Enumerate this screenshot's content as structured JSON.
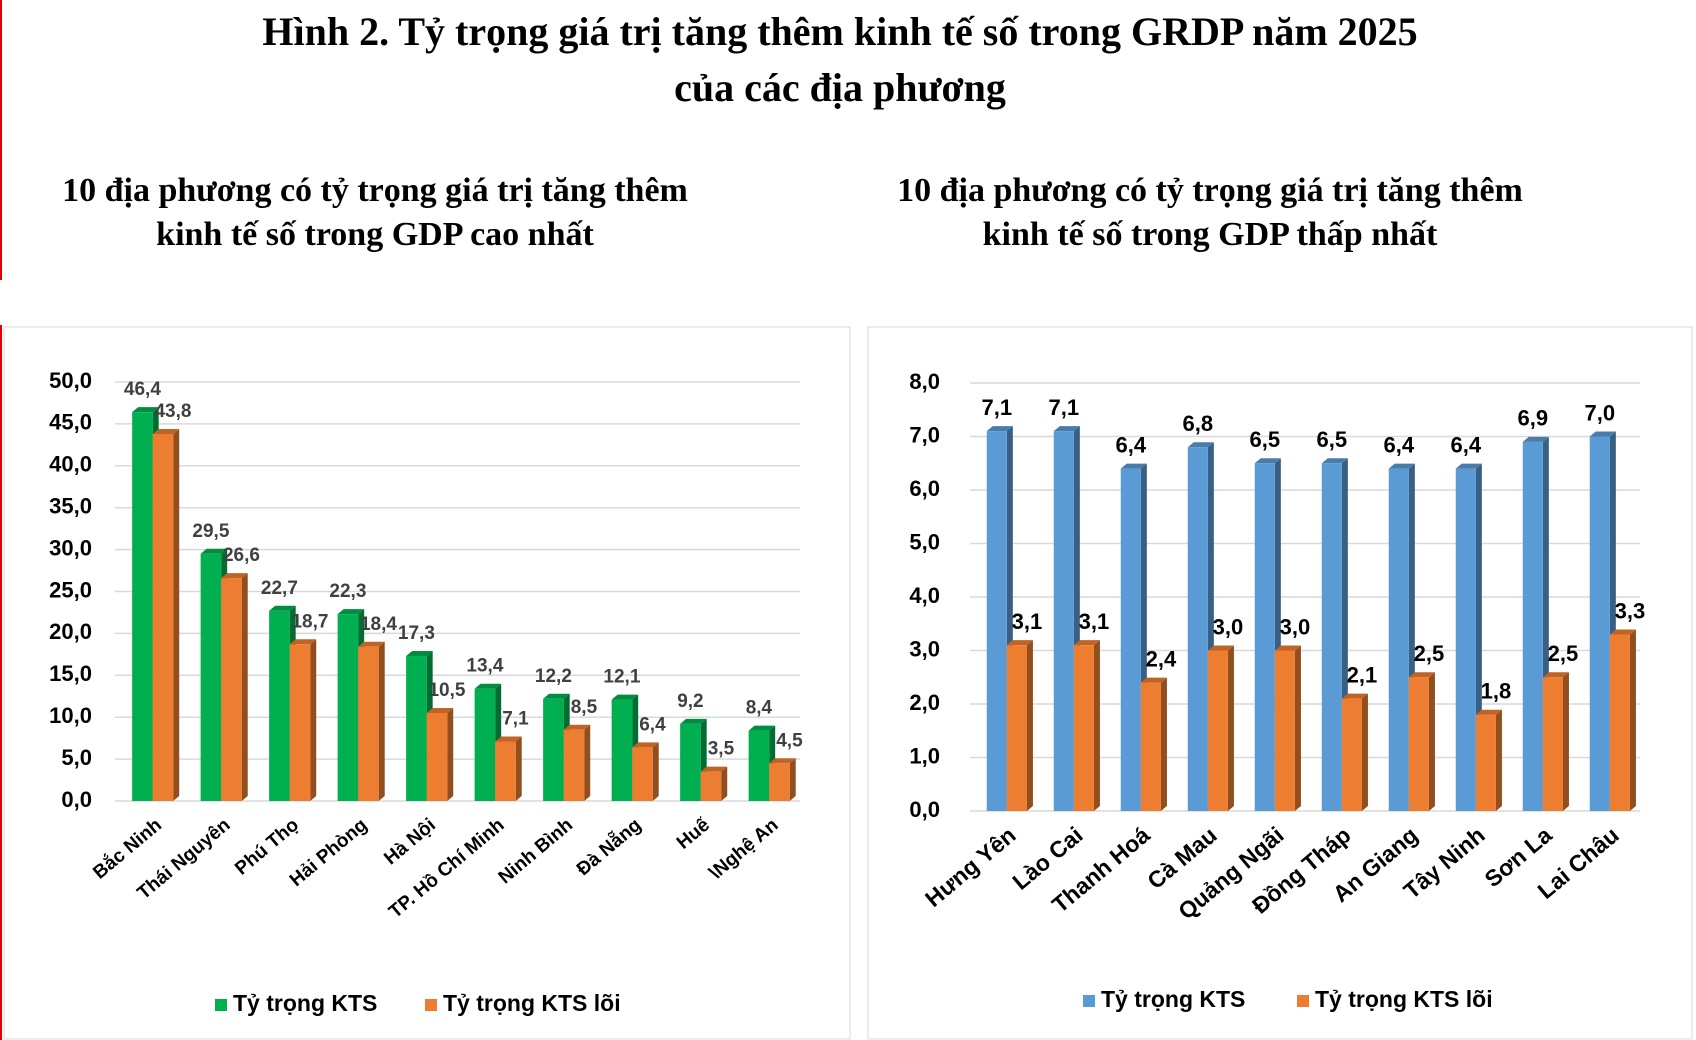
{
  "title": [
    "Hình 2. Tỷ trọng giá trị tăng thêm kinh tế số trong GRDP năm 2025",
    "của các địa phương"
  ],
  "chart_data": [
    {
      "type": "bar",
      "title": [
        "10 địa phương có tỷ trọng giá trị tăng thêm",
        "kinh tế số trong GDP cao nhất"
      ],
      "categories": [
        "Bắc Ninh",
        "Thái Nguyên",
        "Phú Thọ",
        "Hải Phòng",
        "Hà Nội",
        "TP. Hồ Chí Minh",
        "Ninh Bình",
        "Đà Nẵng",
        "Huế",
        "\\Nghệ An"
      ],
      "series": [
        {
          "name": "Tỷ trọng KTS",
          "color": "#00b050",
          "values": [
            46.4,
            29.5,
            22.7,
            22.3,
            17.3,
            13.4,
            12.2,
            12.1,
            9.2,
            8.4
          ],
          "value_labels": [
            "46,4",
            "29,5",
            "22,7",
            "22,3",
            "17,3",
            "13,4",
            "12,2",
            "12,1",
            "9,2",
            "8,4"
          ]
        },
        {
          "name": "Tỷ trọng KTS lõi",
          "color": "#ed7d31",
          "values": [
            43.8,
            26.6,
            18.7,
            18.4,
            10.5,
            7.1,
            8.5,
            6.4,
            3.5,
            4.5
          ],
          "value_labels": [
            "43,8",
            "26,6",
            "18,7",
            "18,4",
            "10,5",
            "7,1",
            "8,5",
            "6,4",
            "3,5",
            "4,5"
          ]
        }
      ],
      "ylim": [
        0,
        50
      ],
      "yticks": [
        {
          "value": 0,
          "label": "0,0"
        },
        {
          "value": 5,
          "label": "5,0"
        },
        {
          "value": 10,
          "label": "10,0"
        },
        {
          "value": 15,
          "label": "15,0"
        },
        {
          "value": 20,
          "label": "20,0"
        },
        {
          "value": 25,
          "label": "25,0"
        },
        {
          "value": 30,
          "label": "30,0"
        },
        {
          "value": 35,
          "label": "35,0"
        },
        {
          "value": 40,
          "label": "40,0"
        },
        {
          "value": 45,
          "label": "45,0"
        },
        {
          "value": 50,
          "label": "50,0"
        }
      ],
      "grid": true,
      "legend": "bottom"
    },
    {
      "type": "bar",
      "title": [
        "10 địa phương có tỷ trọng giá trị tăng thêm",
        "kinh tế số trong GDP thấp nhất"
      ],
      "categories": [
        "Hưng Yên",
        "Lào Cai",
        "Thanh Hoá",
        "Cà Mau",
        "Quảng Ngãi",
        "Đồng Tháp",
        "An Giang",
        "Tây Ninh",
        "Sơn La",
        "Lai Châu"
      ],
      "series": [
        {
          "name": "Tỷ trọng KTS",
          "color": "#5b9bd5",
          "values": [
            7.1,
            7.1,
            6.4,
            6.8,
            6.5,
            6.5,
            6.4,
            6.4,
            6.9,
            7.0
          ],
          "value_labels": [
            "7,1",
            "7,1",
            "6,4",
            "6,8",
            "6,5",
            "6,5",
            "6,4",
            "6,4",
            "6,9",
            "7,0"
          ]
        },
        {
          "name": "Tỷ trọng KTS lõi",
          "color": "#ed7d31",
          "values": [
            3.1,
            3.1,
            2.4,
            3.0,
            3.0,
            2.1,
            2.5,
            1.8,
            2.5,
            3.3
          ],
          "value_labels": [
            "3,1",
            "3,1",
            "2,4",
            "3,0",
            "3,0",
            "2,1",
            "2,5",
            "1,8",
            "2,5",
            "3,3"
          ]
        }
      ],
      "ylim": [
        0,
        8
      ],
      "yticks": [
        {
          "value": 0,
          "label": "0,0"
        },
        {
          "value": 1,
          "label": "1,0"
        },
        {
          "value": 2,
          "label": "2,0"
        },
        {
          "value": 3,
          "label": "3,0"
        },
        {
          "value": 4,
          "label": "4,0"
        },
        {
          "value": 5,
          "label": "5,0"
        },
        {
          "value": 6,
          "label": "6,0"
        },
        {
          "value": 7,
          "label": "7,0"
        },
        {
          "value": 8,
          "label": "8,0"
        }
      ],
      "grid": true,
      "legend": "bottom"
    }
  ]
}
